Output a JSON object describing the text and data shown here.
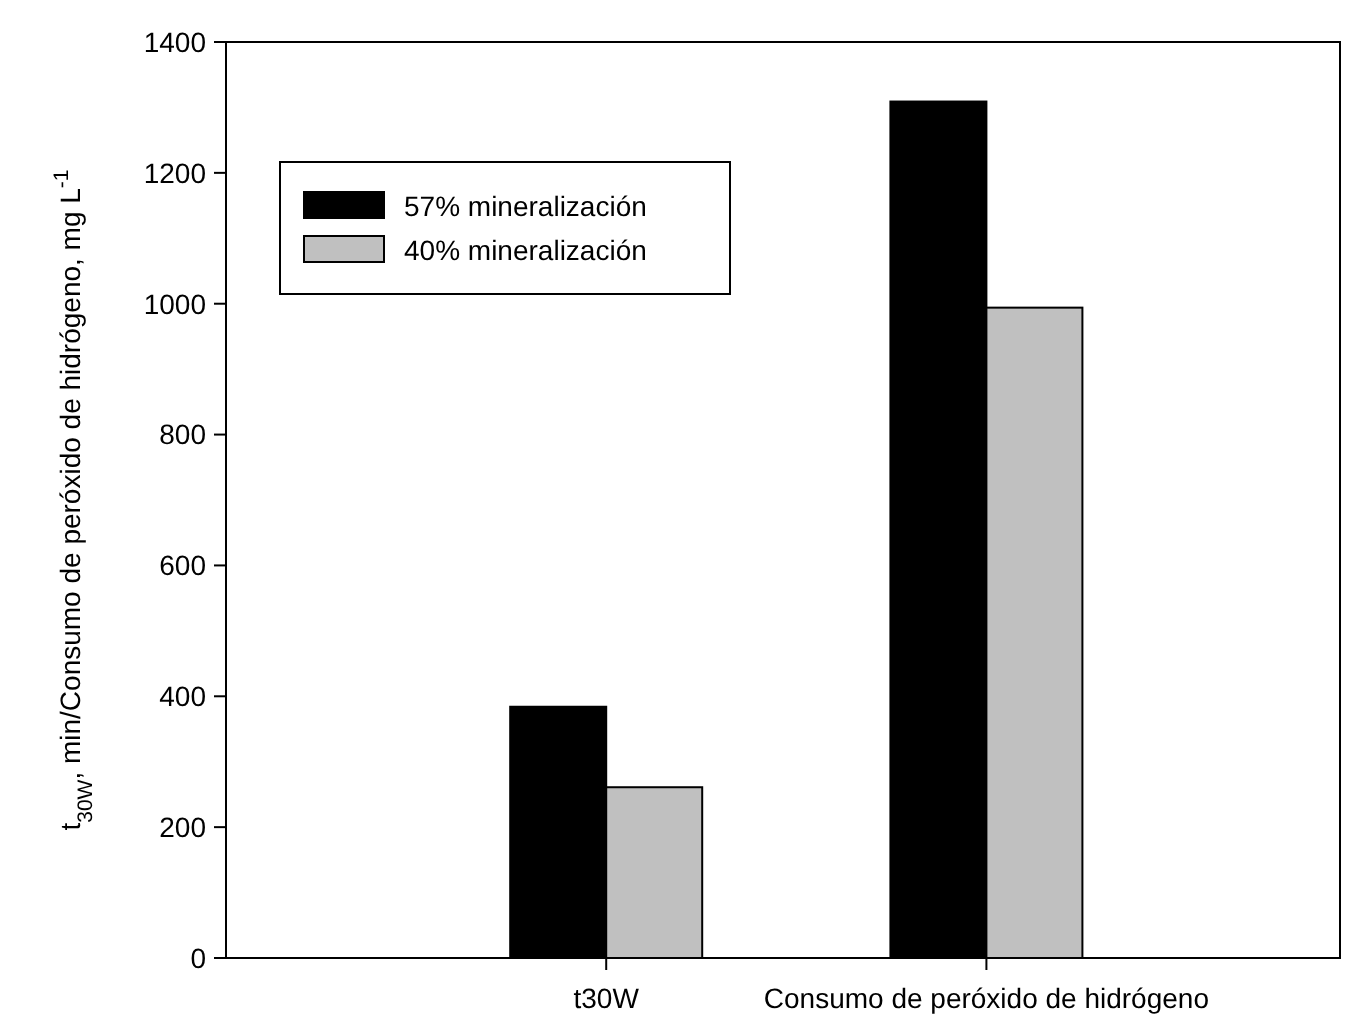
{
  "chart_data": {
    "type": "bar",
    "ylabel": "t$_{30W}$, min/Consumo de peróxido de hidrógeno, mg L$^{-1}$",
    "categories": [
      null,
      "t30W",
      "Consumo de peróxido de hidrógeno"
    ],
    "series": [
      {
        "name": "57% mineralización",
        "color": "#000000",
        "values": [
          null,
          384,
          1309
        ]
      },
      {
        "name": "40% mineralización",
        "color": "#c0c0c0",
        "values": [
          null,
          261,
          994
        ]
      }
    ],
    "ylim": [
      0,
      1400
    ],
    "yticks": [
      0,
      200,
      400,
      600,
      800,
      1000,
      1200,
      1400
    ],
    "grid": false,
    "legend": "top left"
  }
}
